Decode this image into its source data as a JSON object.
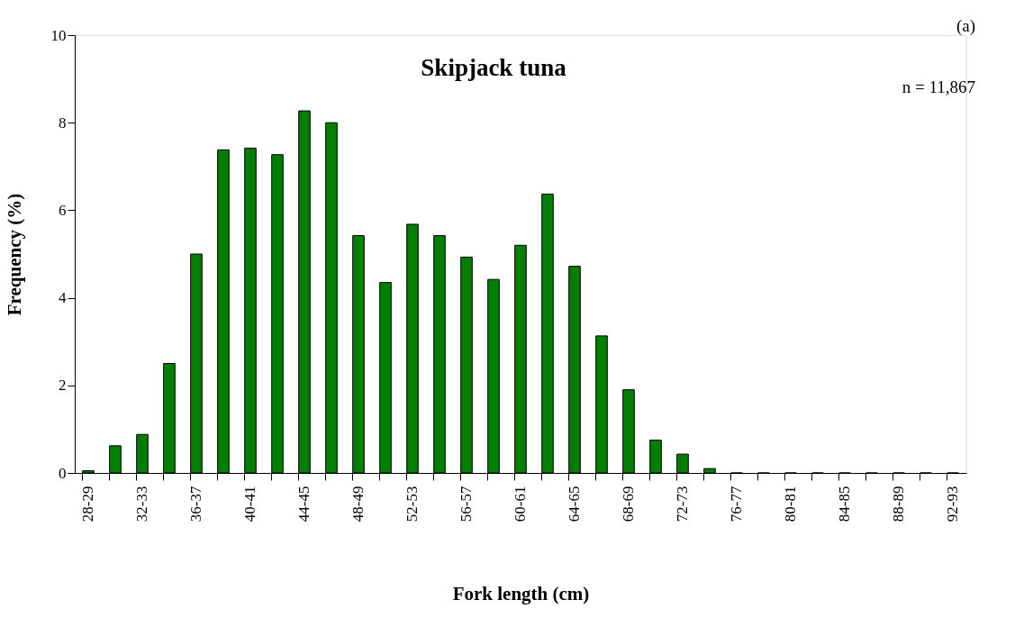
{
  "chart_data": {
    "type": "bar",
    "title": "Skipjack tuna",
    "xlabel": "Fork length (cm)",
    "ylabel": "Frequency (%)",
    "annotations": [
      "(a)",
      "n = 11,867"
    ],
    "categories": [
      "28-29",
      null,
      "32-33",
      null,
      "36-37",
      null,
      "40-41",
      null,
      "44-45",
      null,
      "48-49",
      null,
      "52-53",
      null,
      "56-57",
      null,
      "60-61",
      null,
      "64-65",
      null,
      "68-69",
      null,
      "72-73",
      null,
      "76-77",
      null,
      "80-81",
      null,
      "84-85",
      null,
      "88-89",
      null,
      "92-93"
    ],
    "values": [
      0.05,
      0.62,
      0.88,
      2.5,
      5.0,
      7.38,
      7.42,
      7.27,
      8.27,
      8.0,
      5.42,
      4.35,
      5.68,
      5.42,
      4.93,
      4.42,
      5.2,
      6.37,
      4.72,
      3.13,
      1.9,
      0.75,
      0.43,
      0.1,
      0,
      0,
      0,
      0,
      0,
      0,
      0,
      0,
      0
    ],
    "color": "#007f00",
    "ylim": [
      0,
      10
    ],
    "yticks": [
      0,
      2,
      4,
      6,
      8,
      10
    ],
    "grid": false
  }
}
